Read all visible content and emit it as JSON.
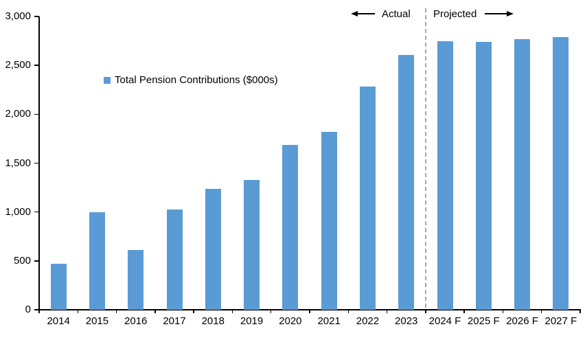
{
  "chart_data": {
    "type": "bar",
    "title": "",
    "legend": "Total Pension Contributions ($000s)",
    "categories": [
      "2014",
      "2015",
      "2016",
      "2017",
      "2018",
      "2019",
      "2020",
      "2021",
      "2022",
      "2023",
      "2024 F",
      "2025 F",
      "2026 F",
      "2027 F"
    ],
    "series": [
      {
        "name": "Total Pension Contributions ($000s)",
        "values": [
          470,
          1000,
          610,
          1025,
          1240,
          1325,
          1685,
          1820,
          2285,
          2610,
          2750,
          2740,
          2765,
          2790
        ]
      }
    ],
    "ylim": [
      0,
      3000
    ],
    "ytick_interval": 500,
    "ytick_labels": [
      "0",
      "500",
      "1,000",
      "1,500",
      "2,000",
      "2,500",
      "3,000"
    ],
    "xlabel": "",
    "ylabel": "",
    "grid": false,
    "legend_position": "inside-upper-left",
    "annotations": {
      "actual_label": "Actual",
      "projected_label": "Projected",
      "divider_after_category": "2023"
    },
    "divider_index": 10,
    "colors": {
      "bar": "#5B9BD5",
      "divider": "#A6A6A6",
      "axis": "#000000",
      "text": "#000000"
    }
  }
}
